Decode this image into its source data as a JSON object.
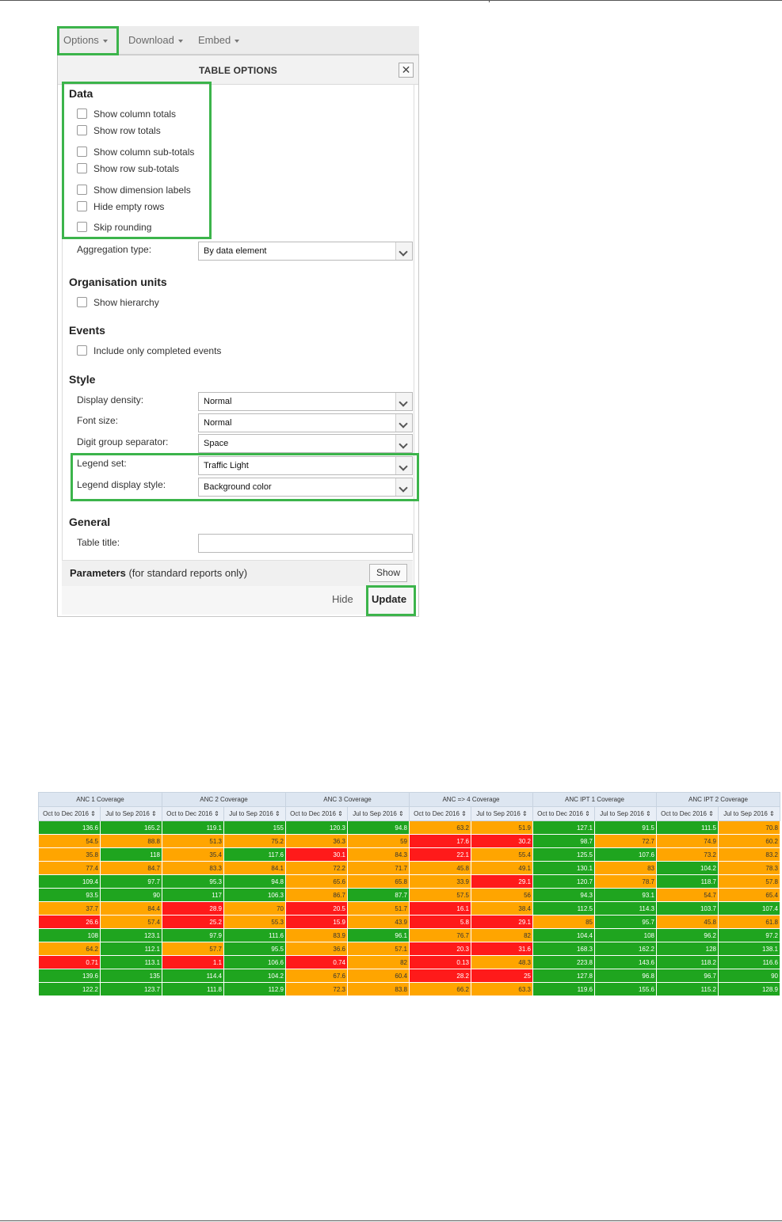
{
  "menubar": {
    "options": "Options",
    "download": "Download",
    "embed": "Embed"
  },
  "dialog": {
    "title": "TABLE OPTIONS",
    "close": "✕",
    "data_section": "Data",
    "checkboxes_data": [
      "Show column totals",
      "Show row totals",
      "Show column sub-totals",
      "Show row sub-totals",
      "Show dimension labels",
      "Hide empty rows",
      "Skip rounding"
    ],
    "aggregation_label": "Aggregation type:",
    "aggregation_value": "By data element",
    "org_section": "Organisation units",
    "show_hierarchy": "Show hierarchy",
    "events_section": "Events",
    "completed_events": "Include only completed events",
    "style_section": "Style",
    "display_density_label": "Display density:",
    "display_density_value": "Normal",
    "font_size_label": "Font size:",
    "font_size_value": "Normal",
    "digit_sep_label": "Digit group separator:",
    "digit_sep_value": "Space",
    "legend_set_label": "Legend set:",
    "legend_set_value": "Traffic Light",
    "legend_style_label": "Legend display style:",
    "legend_style_value": "Background color",
    "general_section": "General",
    "table_title_label": "Table title:",
    "table_title_value": "",
    "params_label": "Parameters",
    "params_note": "(for standard reports only)",
    "show_button": "Show",
    "hide_button": "Hide",
    "update_button": "Update"
  },
  "colors": {
    "highlight": "#3cb44b",
    "good": "#1fa51f",
    "warn": "#ffa500",
    "bad": "#ff1a1a"
  },
  "table": {
    "groups": [
      "ANC 1 Coverage",
      "ANC 2 Coverage",
      "ANC 3 Coverage",
      "ANC => 4 Coverage",
      "ANC IPT 1 Coverage",
      "ANC IPT 2 Coverage"
    ],
    "periods": [
      "Oct to Dec 2016 ⇕",
      "Jul to Sep 2016 ⇕"
    ],
    "rows": [
      [
        [
          "136.6",
          "g"
        ],
        [
          "165.2",
          "g"
        ],
        [
          "119.1",
          "g"
        ],
        [
          "155",
          "g"
        ],
        [
          "120.3",
          "g"
        ],
        [
          "94.8",
          "g"
        ],
        [
          "63.2",
          "o"
        ],
        [
          "51.9",
          "o"
        ],
        [
          "127.1",
          "g"
        ],
        [
          "91.5",
          "g"
        ],
        [
          "111.5",
          "g"
        ],
        [
          "70.8",
          "o"
        ]
      ],
      [
        [
          "54.5",
          "o"
        ],
        [
          "88.8",
          "o"
        ],
        [
          "51.3",
          "o"
        ],
        [
          "75.2",
          "o"
        ],
        [
          "36.3",
          "o"
        ],
        [
          "59",
          "o"
        ],
        [
          "17.6",
          "r"
        ],
        [
          "30.2",
          "r"
        ],
        [
          "98.7",
          "g"
        ],
        [
          "72.7",
          "o"
        ],
        [
          "74.9",
          "o"
        ],
        [
          "60.2",
          "o"
        ]
      ],
      [
        [
          "35.8",
          "o"
        ],
        [
          "118",
          "g"
        ],
        [
          "35.4",
          "o"
        ],
        [
          "117.6",
          "g"
        ],
        [
          "30.1",
          "r"
        ],
        [
          "84.3",
          "o"
        ],
        [
          "22.1",
          "r"
        ],
        [
          "55.4",
          "o"
        ],
        [
          "125.5",
          "g"
        ],
        [
          "107.6",
          "g"
        ],
        [
          "73.2",
          "o"
        ],
        [
          "83.2",
          "o"
        ]
      ],
      [
        [
          "77.4",
          "o"
        ],
        [
          "84.7",
          "o"
        ],
        [
          "83.3",
          "o"
        ],
        [
          "84.1",
          "o"
        ],
        [
          "72.2",
          "o"
        ],
        [
          "71.7",
          "o"
        ],
        [
          "45.8",
          "o"
        ],
        [
          "49.1",
          "o"
        ],
        [
          "130.1",
          "g"
        ],
        [
          "83",
          "o"
        ],
        [
          "104.2",
          "g"
        ],
        [
          "78.3",
          "o"
        ]
      ],
      [
        [
          "109.4",
          "g"
        ],
        [
          "97.7",
          "g"
        ],
        [
          "95.3",
          "g"
        ],
        [
          "94.8",
          "g"
        ],
        [
          "65.6",
          "o"
        ],
        [
          "65.8",
          "o"
        ],
        [
          "33.9",
          "o"
        ],
        [
          "29.1",
          "r"
        ],
        [
          "120.7",
          "g"
        ],
        [
          "78.7",
          "o"
        ],
        [
          "118.7",
          "g"
        ],
        [
          "57.8",
          "o"
        ]
      ],
      [
        [
          "93.5",
          "g"
        ],
        [
          "90",
          "g"
        ],
        [
          "117",
          "g"
        ],
        [
          "106.3",
          "g"
        ],
        [
          "86.7",
          "o"
        ],
        [
          "87.7",
          "g"
        ],
        [
          "57.5",
          "o"
        ],
        [
          "56",
          "o"
        ],
        [
          "94.3",
          "g"
        ],
        [
          "93.1",
          "g"
        ],
        [
          "54.7",
          "o"
        ],
        [
          "65.4",
          "o"
        ]
      ],
      [
        [
          "37.7",
          "o"
        ],
        [
          "84.4",
          "o"
        ],
        [
          "28.9",
          "r"
        ],
        [
          "70",
          "o"
        ],
        [
          "20.5",
          "r"
        ],
        [
          "51.7",
          "o"
        ],
        [
          "16.1",
          "r"
        ],
        [
          "38.4",
          "o"
        ],
        [
          "112.5",
          "g"
        ],
        [
          "114.3",
          "g"
        ],
        [
          "103.7",
          "g"
        ],
        [
          "107.4",
          "g"
        ]
      ],
      [
        [
          "26.6",
          "r"
        ],
        [
          "57.4",
          "o"
        ],
        [
          "25.2",
          "r"
        ],
        [
          "55.3",
          "o"
        ],
        [
          "15.9",
          "r"
        ],
        [
          "43.9",
          "o"
        ],
        [
          "5.8",
          "r"
        ],
        [
          "29.1",
          "r"
        ],
        [
          "85",
          "o"
        ],
        [
          "95.7",
          "g"
        ],
        [
          "45.8",
          "o"
        ],
        [
          "61.8",
          "o"
        ]
      ],
      [
        [
          "108",
          "g"
        ],
        [
          "123.1",
          "g"
        ],
        [
          "97.9",
          "g"
        ],
        [
          "111.6",
          "g"
        ],
        [
          "83.9",
          "o"
        ],
        [
          "96.1",
          "g"
        ],
        [
          "76.7",
          "o"
        ],
        [
          "82",
          "o"
        ],
        [
          "104.4",
          "g"
        ],
        [
          "108",
          "g"
        ],
        [
          "96.2",
          "g"
        ],
        [
          "97.2",
          "g"
        ]
      ],
      [
        [
          "64.2",
          "o"
        ],
        [
          "112.1",
          "g"
        ],
        [
          "57.7",
          "o"
        ],
        [
          "95.5",
          "g"
        ],
        [
          "36.6",
          "o"
        ],
        [
          "57.1",
          "o"
        ],
        [
          "20.3",
          "r"
        ],
        [
          "31.6",
          "r"
        ],
        [
          "168.3",
          "g"
        ],
        [
          "162.2",
          "g"
        ],
        [
          "128",
          "g"
        ],
        [
          "138.1",
          "g"
        ]
      ],
      [
        [
          "0.71",
          "r"
        ],
        [
          "113.1",
          "g"
        ],
        [
          "1.1",
          "r"
        ],
        [
          "106.6",
          "g"
        ],
        [
          "0.74",
          "r"
        ],
        [
          "82",
          "o"
        ],
        [
          "0.13",
          "r"
        ],
        [
          "48.3",
          "o"
        ],
        [
          "223.8",
          "g"
        ],
        [
          "143.6",
          "g"
        ],
        [
          "118.2",
          "g"
        ],
        [
          "116.6",
          "g"
        ]
      ],
      [
        [
          "139.6",
          "g"
        ],
        [
          "135",
          "g"
        ],
        [
          "114.4",
          "g"
        ],
        [
          "104.2",
          "g"
        ],
        [
          "67.6",
          "o"
        ],
        [
          "60.4",
          "o"
        ],
        [
          "28.2",
          "r"
        ],
        [
          "25",
          "r"
        ],
        [
          "127.8",
          "g"
        ],
        [
          "96.8",
          "g"
        ],
        [
          "96.7",
          "g"
        ],
        [
          "90",
          "g"
        ]
      ],
      [
        [
          "122.2",
          "g"
        ],
        [
          "123.7",
          "g"
        ],
        [
          "111.8",
          "g"
        ],
        [
          "112.9",
          "g"
        ],
        [
          "72.3",
          "o"
        ],
        [
          "83.8",
          "o"
        ],
        [
          "66.2",
          "o"
        ],
        [
          "63.3",
          "o"
        ],
        [
          "119.6",
          "g"
        ],
        [
          "155.6",
          "g"
        ],
        [
          "115.2",
          "g"
        ],
        [
          "128.9",
          "g"
        ]
      ]
    ]
  }
}
